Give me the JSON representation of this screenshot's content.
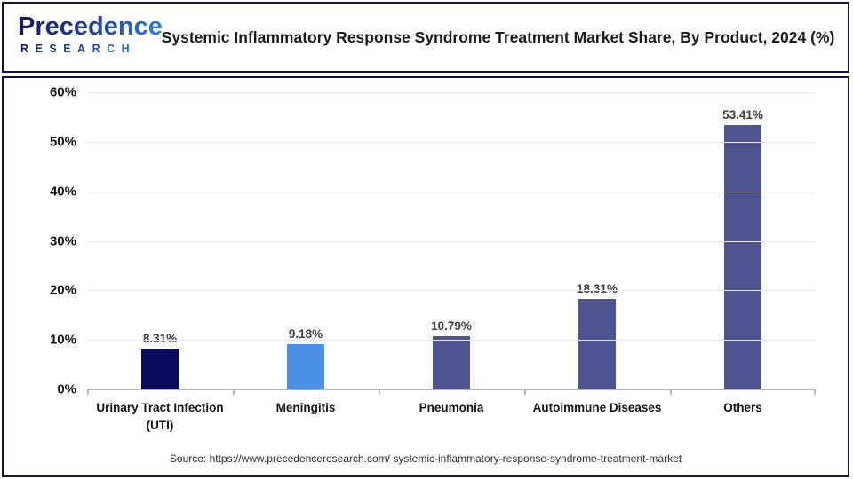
{
  "header": {
    "logo": {
      "word": "Precedence",
      "sub": "RESEARCH"
    },
    "title": "Systemic Inflammatory Response Syndrome Treatment Market Share, By Product, 2024 (%)"
  },
  "chart_data": {
    "type": "bar",
    "title": "Systemic Inflammatory Response Syndrome Treatment Market Share, By Product, 2024 (%)",
    "categories": [
      "Urinary Tract Infection (UTI)",
      "Meningitis",
      "Pneumonia",
      "Autoimmune Diseases",
      "Others"
    ],
    "values": [
      8.31,
      9.18,
      10.79,
      18.31,
      53.41
    ],
    "value_labels": [
      "8.31%",
      "9.18%",
      "10.79%",
      "18.31%",
      "53.41%"
    ],
    "bar_colors": [
      "#0a0b5e",
      "#4a90e6",
      "#4d5490",
      "#4d5490",
      "#4d5490"
    ],
    "xlabel": "",
    "ylabel": "",
    "ylim": [
      0,
      60
    ],
    "ytick_step": 10,
    "yticks": [
      "0%",
      "10%",
      "20%",
      "30%",
      "40%",
      "50%",
      "60%"
    ],
    "grid": true,
    "legend": false
  },
  "footer": {
    "source": "Source: https://www.precedenceresearch.com/ systemic-inflammatory-response-syndrome-treatment-market"
  },
  "colors": {
    "border_navy": "#14143c",
    "bar_dark_navy": "#0a0b5e",
    "bar_blue": "#4a90e6",
    "bar_slate": "#4d5490",
    "gridline": "#eaeaea",
    "axis": "#b8b8b8"
  }
}
